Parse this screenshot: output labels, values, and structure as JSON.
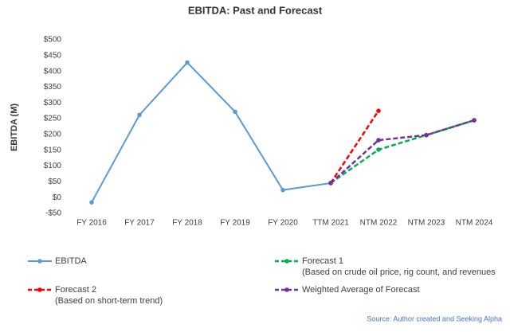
{
  "chart_data": {
    "type": "line",
    "title": "EBITDA: Past and Forecast",
    "y_label": "EBITDA (M)",
    "categories": [
      "FY 2016",
      "FY 2017",
      "FY 2018",
      "FY 2019",
      "FY 2020",
      "TTM 2021",
      "NTM 2022",
      "NTM 2023",
      "NTM 2024"
    ],
    "series": [
      {
        "name": "EBITDA",
        "color": "#5b9bd5",
        "dashed": false,
        "values": [
          -15,
          262,
          428,
          272,
          24,
          46,
          null,
          null,
          null
        ]
      },
      {
        "name": "Forecast 1",
        "detail": "(Based on crude oil price,  rig count, and revenues",
        "color": "#00b050",
        "dashed": true,
        "values": [
          null,
          null,
          null,
          null,
          null,
          46,
          152,
          198,
          245
        ]
      },
      {
        "name": "Forecast 2",
        "detail": "(Based on short-term trend)",
        "color": "#ff0000",
        "dashed": true,
        "values": [
          null,
          null,
          null,
          null,
          null,
          46,
          275,
          null,
          null
        ]
      },
      {
        "name": "Weighted Average of Forecast",
        "color": "#7030a0",
        "dashed": true,
        "values": [
          null,
          null,
          null,
          null,
          null,
          46,
          182,
          198,
          245
        ]
      }
    ],
    "ylim": [
      -50,
      500
    ],
    "yticks": [
      {
        "value": -50,
        "label": "-$50"
      },
      {
        "value": 0,
        "label": "$0"
      },
      {
        "value": 50,
        "label": "$50"
      },
      {
        "value": 100,
        "label": "$100"
      },
      {
        "value": 150,
        "label": "$150"
      },
      {
        "value": 200,
        "label": "$200"
      },
      {
        "value": 250,
        "label": "$250"
      },
      {
        "value": 300,
        "label": "$300"
      },
      {
        "value": 350,
        "label": "$350"
      },
      {
        "value": 400,
        "label": "$400"
      },
      {
        "value": 450,
        "label": "$450"
      },
      {
        "value": 500,
        "label": "$500"
      }
    ],
    "grid": false,
    "source": "Source: Author created and Seeking Alpha"
  }
}
